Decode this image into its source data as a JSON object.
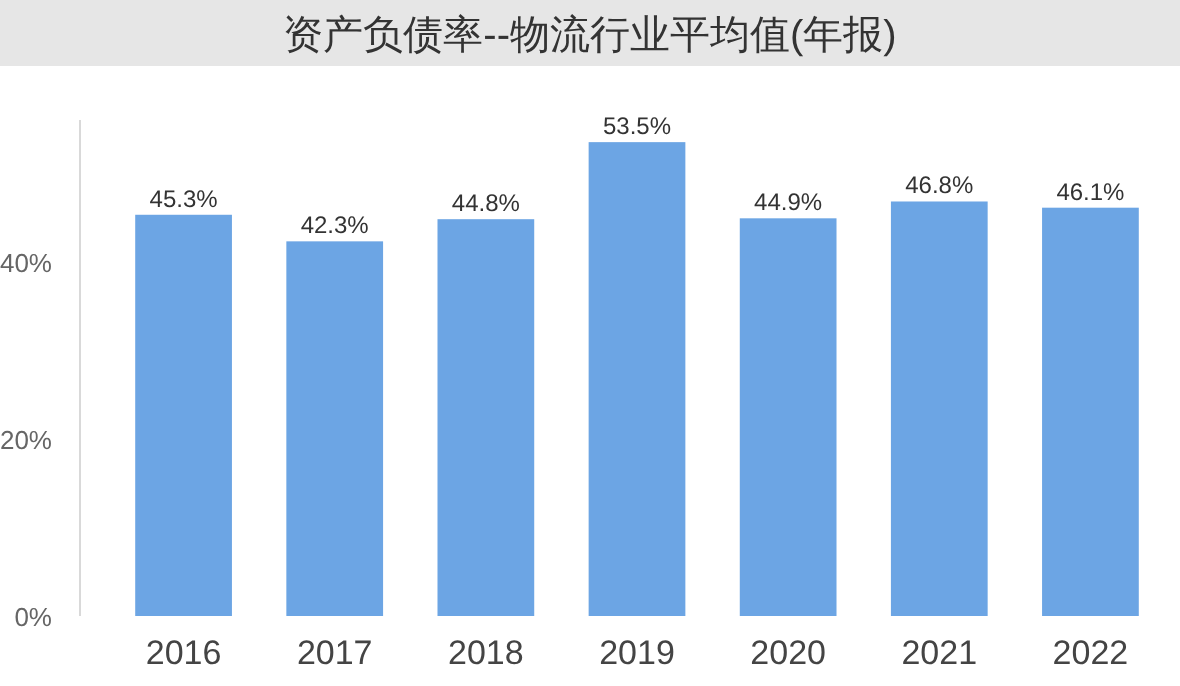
{
  "chart_data": {
    "type": "bar",
    "title": "资产负债率--物流行业平均值(年报)",
    "categories": [
      "2016",
      "2017",
      "2018",
      "2019",
      "2020",
      "2021",
      "2022"
    ],
    "values": [
      45.3,
      42.3,
      44.8,
      53.5,
      44.9,
      46.8,
      46.1
    ],
    "value_labels": [
      "45.3%",
      "42.3%",
      "44.8%",
      "53.5%",
      "44.9%",
      "46.8%",
      "46.1%"
    ],
    "color": "#6ca5e4",
    "ylim": [
      0,
      56
    ],
    "yticks": [
      {
        "value": 0,
        "label": "0%"
      },
      {
        "value": 20,
        "label": "20%"
      },
      {
        "value": 40,
        "label": "40%"
      }
    ],
    "grid": false
  }
}
